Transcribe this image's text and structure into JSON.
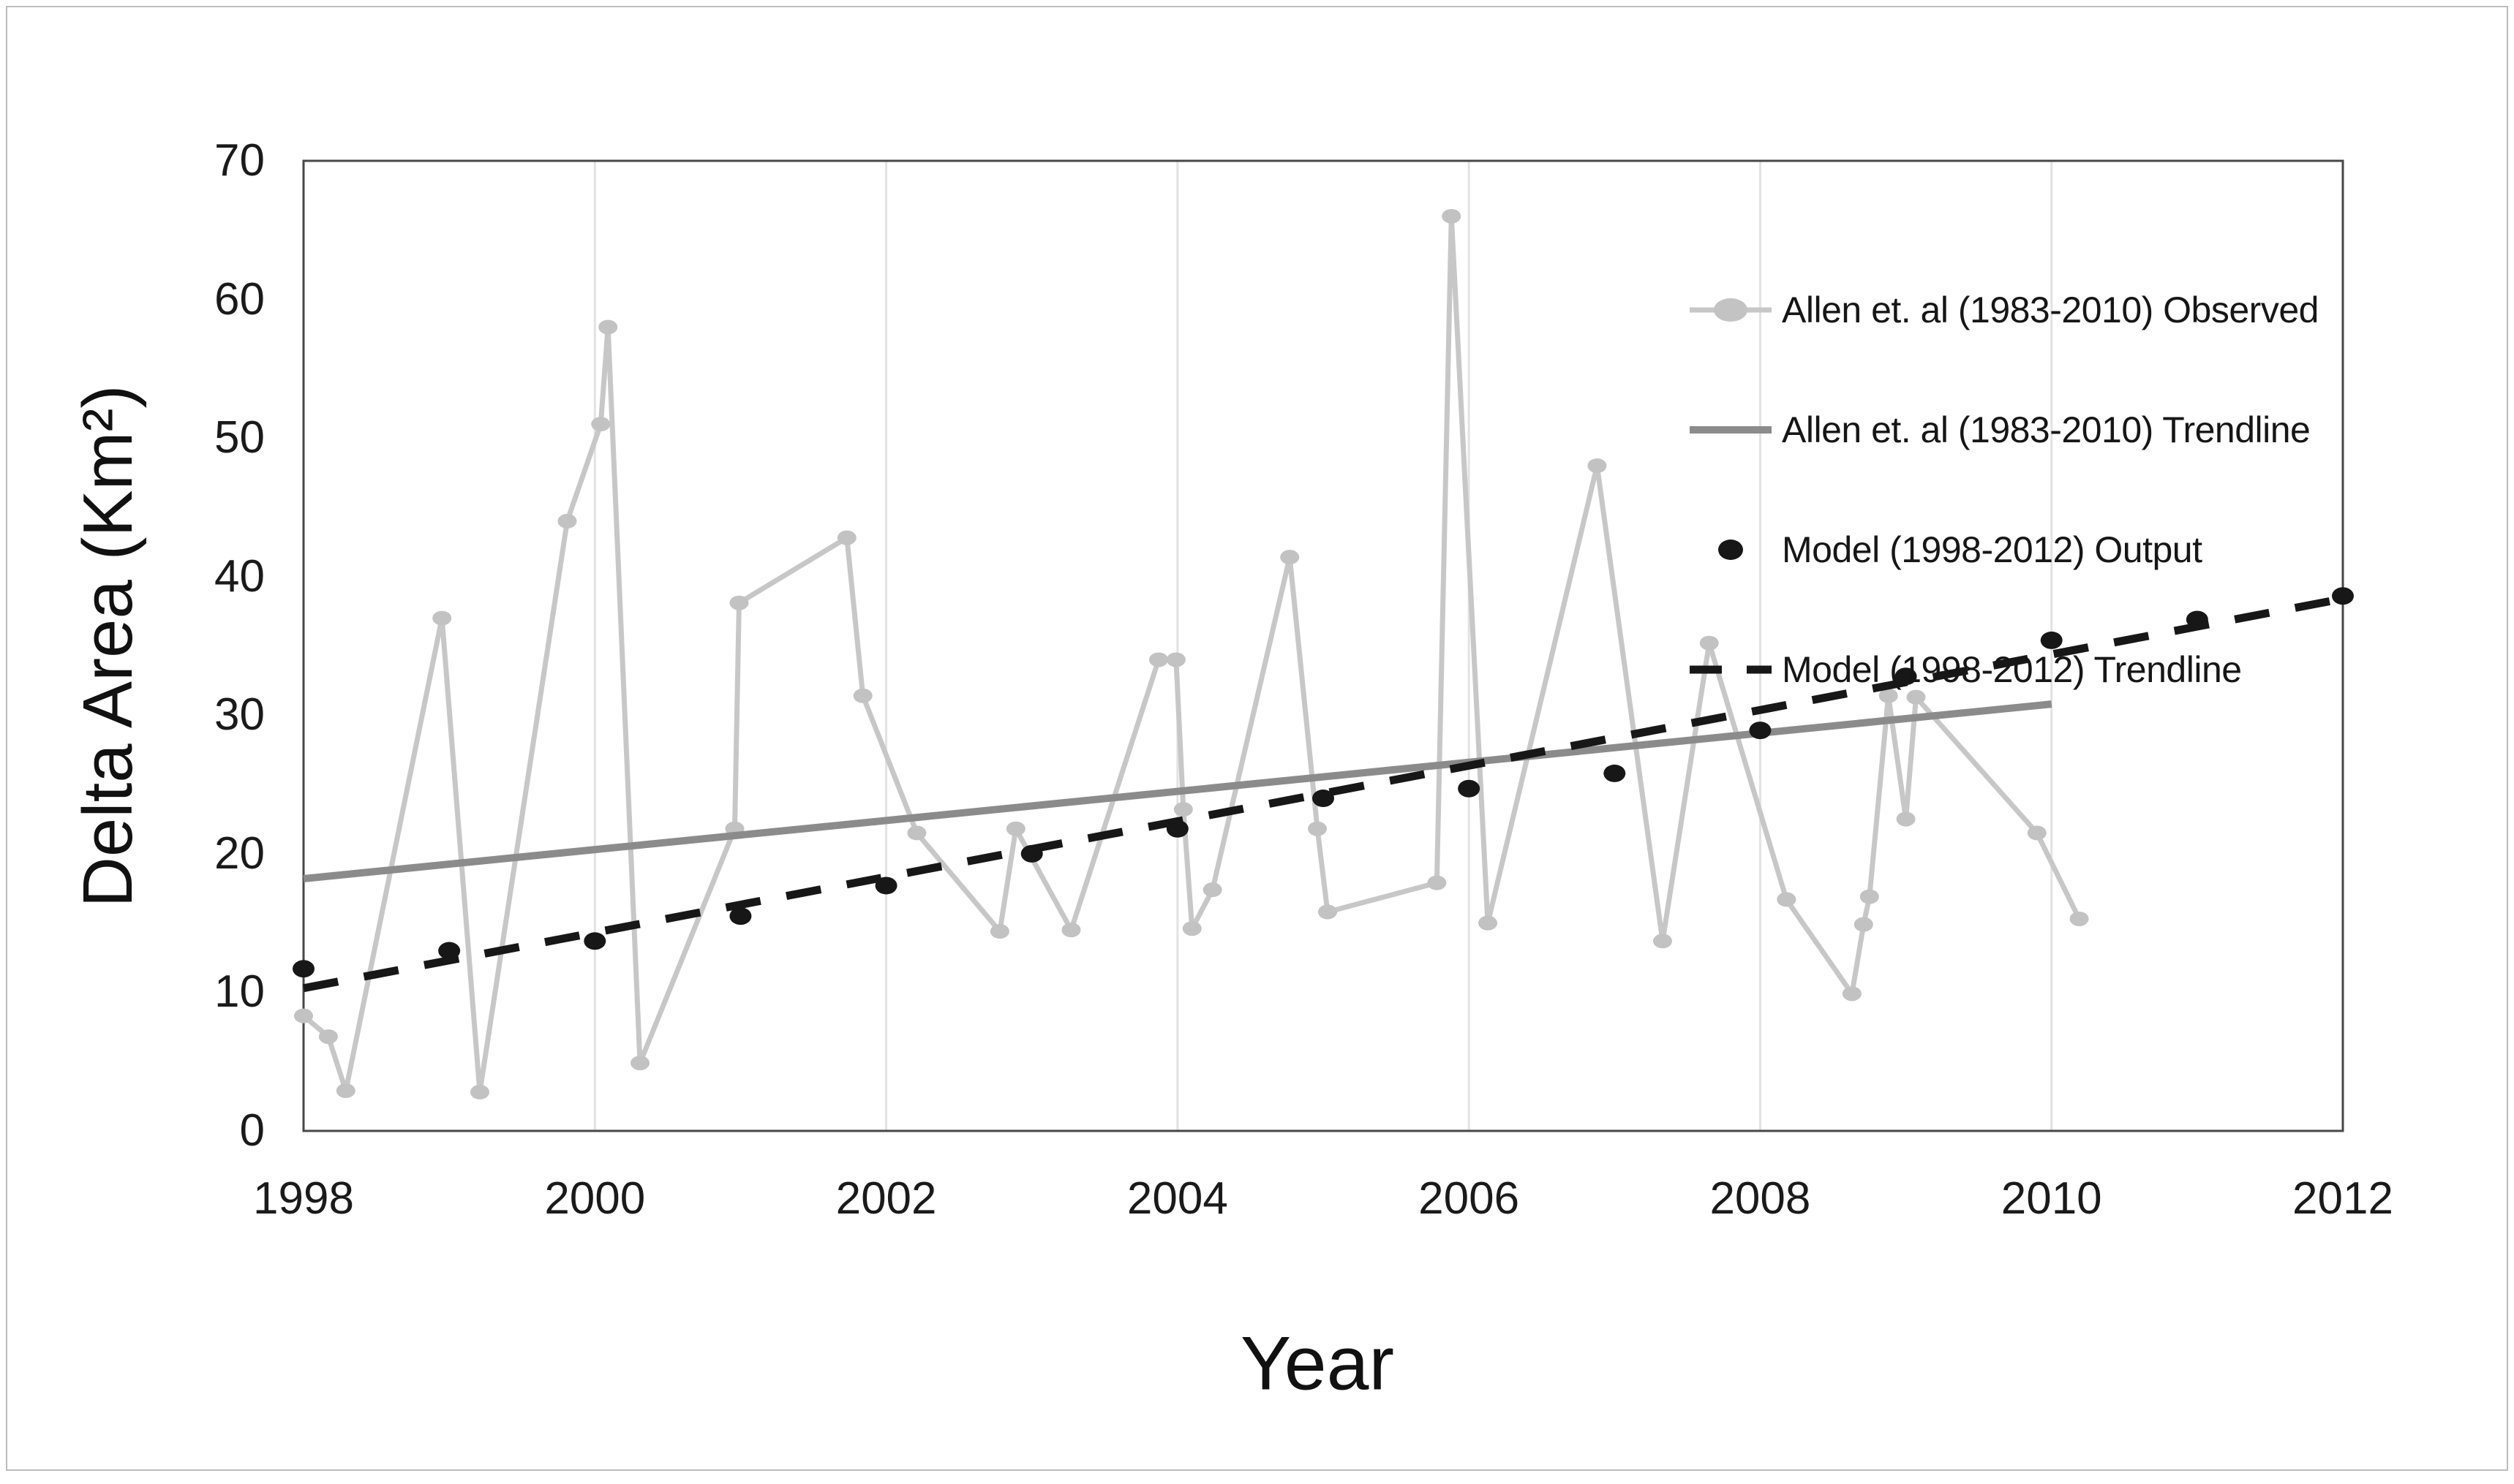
{
  "figure": {
    "background": "#ffffff",
    "frame_color": "#bcbcbc",
    "plot_border_color": "#474747",
    "gridline_color": "#e2e2e2",
    "text_color": "#1a1a1a"
  },
  "chart_data": {
    "type": "line",
    "title": "",
    "xlabel": "Year",
    "ylabel": "Delta Area (Km²)",
    "grid": "vertical-only",
    "legend_position": "top-right-inside",
    "x_axis": {
      "min": 1998,
      "max": 2012,
      "tick_step": 2,
      "tick_values": [
        1998,
        2000,
        2002,
        2004,
        2006,
        2008,
        2010,
        2012
      ],
      "tick_labels": [
        "1998",
        "2000",
        "2002",
        "2004",
        "2006",
        "2008",
        "2010",
        "2012"
      ],
      "gridline_years": [
        2000,
        2002,
        2004,
        2006,
        2008,
        2010
      ]
    },
    "y_axis": {
      "min": 0,
      "max": 70,
      "tick_step": 10,
      "tick_values": [
        0,
        10,
        20,
        30,
        40,
        50,
        60,
        70
      ],
      "tick_labels": [
        "0",
        "10",
        "20",
        "30",
        "40",
        "50",
        "60",
        "70"
      ]
    },
    "series": [
      {
        "key": "allen-observed",
        "name": "Allen et. al (1983-2010) Observed",
        "style": "line-with-markers",
        "color": "#c7c7c7",
        "marker_color": "#c2c2c2",
        "marker_rx": 13,
        "marker_ry": 10,
        "line_width": 7,
        "points": [
          [
            1998.0,
            8.3
          ],
          [
            1998.17,
            6.8
          ],
          [
            1998.29,
            2.9
          ],
          [
            1998.95,
            37.0
          ],
          [
            1999.21,
            2.8
          ],
          [
            1999.81,
            44.0
          ],
          [
            2000.04,
            51.0
          ],
          [
            2000.09,
            58.0
          ],
          [
            2000.31,
            4.9
          ],
          [
            2000.96,
            21.8
          ],
          [
            2000.99,
            38.1
          ],
          [
            2001.73,
            42.8
          ],
          [
            2001.84,
            31.4
          ],
          [
            2002.21,
            21.5
          ],
          [
            2002.78,
            14.4
          ],
          [
            2002.89,
            21.8
          ],
          [
            2003.27,
            14.5
          ],
          [
            2003.87,
            34.0
          ],
          [
            2003.99,
            34.0
          ],
          [
            2004.04,
            23.2
          ],
          [
            2004.1,
            14.6
          ],
          [
            2004.24,
            17.4
          ],
          [
            2004.77,
            41.4
          ],
          [
            2004.96,
            21.8
          ],
          [
            2005.03,
            15.8
          ],
          [
            2005.78,
            17.9
          ],
          [
            2005.88,
            66.0
          ],
          [
            2006.13,
            15.0
          ],
          [
            2006.88,
            48.0
          ],
          [
            2007.33,
            13.7
          ],
          [
            2007.65,
            35.2
          ],
          [
            2008.18,
            16.7
          ],
          [
            2008.63,
            9.9
          ],
          [
            2008.71,
            14.9
          ],
          [
            2008.75,
            16.9
          ],
          [
            2008.88,
            31.4
          ],
          [
            2009.0,
            22.5
          ],
          [
            2009.07,
            31.3
          ],
          [
            2009.9,
            21.5
          ],
          [
            2010.19,
            15.3
          ]
        ]
      },
      {
        "key": "allen-trendline",
        "name": "Allen et. al (1983-2010) Trendline",
        "style": "line",
        "color": "#8b8b8b",
        "line_width": 10,
        "points": [
          [
            1998,
            18.2
          ],
          [
            2010,
            30.8
          ]
        ]
      },
      {
        "key": "model-trendline",
        "name": "Model (1998-2012) Trendline",
        "style": "dashed-line",
        "color": "#171717",
        "line_width": 11,
        "dash": [
          48,
          36
        ],
        "points": [
          [
            1998,
            10.3
          ],
          [
            2012,
            38.4
          ]
        ]
      },
      {
        "key": "model-output",
        "name": "Model (1998-2012) Output",
        "style": "markers",
        "color": "#171717",
        "marker_rx": 15,
        "marker_ry": 12,
        "points": [
          [
            1998,
            11.7
          ],
          [
            1999,
            13.0
          ],
          [
            2000,
            13.7
          ],
          [
            2001,
            15.5
          ],
          [
            2002,
            17.7
          ],
          [
            2003,
            20.0
          ],
          [
            2004,
            21.8
          ],
          [
            2005,
            24.0
          ],
          [
            2006,
            24.7
          ],
          [
            2007,
            25.8
          ],
          [
            2008,
            28.9
          ],
          [
            2009,
            32.8
          ],
          [
            2010,
            35.4
          ],
          [
            2011,
            36.9
          ],
          [
            2012,
            38.6
          ]
        ]
      }
    ]
  }
}
